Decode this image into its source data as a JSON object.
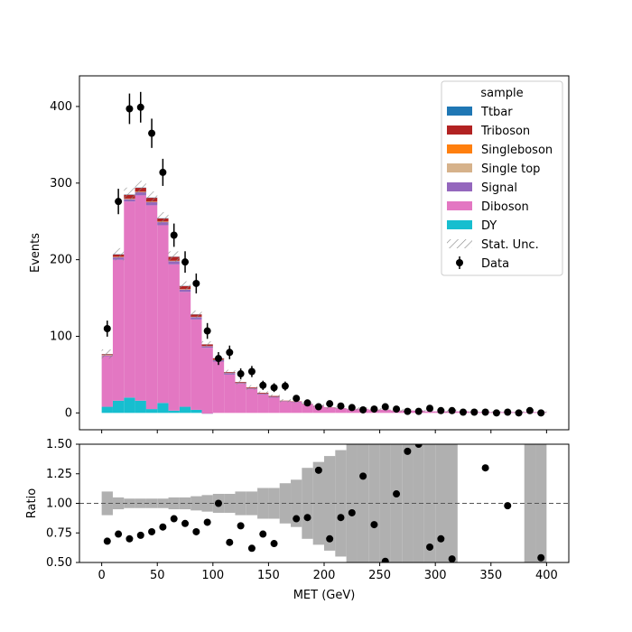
{
  "chart_data": [
    {
      "type": "bar",
      "panel": "main",
      "xlabel": "",
      "ylabel": "Events",
      "xlim": [
        -20,
        420
      ],
      "ylim": [
        -22,
        440
      ],
      "yticks": [
        0,
        100,
        200,
        300,
        400
      ],
      "bin_edges": [
        0,
        10,
        20,
        30,
        40,
        50,
        60,
        70,
        80,
        90,
        100,
        110,
        120,
        130,
        140,
        150,
        160,
        170,
        180,
        190,
        200,
        210,
        220,
        230,
        240,
        250,
        260,
        270,
        280,
        290,
        300,
        310,
        320,
        330,
        340,
        350,
        360,
        370,
        380,
        390,
        400
      ],
      "stacked": true,
      "legend_title": "sample",
      "legend_position": "top-right",
      "legend_entries": [
        "Ttbar",
        "Triboson",
        "Singleboson",
        "Single top",
        "Signal",
        "Diboson",
        "DY",
        "Stat. Unc.",
        "Data"
      ],
      "series": [
        {
          "name": "DY",
          "color": "#17becf",
          "values": [
            8,
            16,
            20,
            16,
            5,
            13,
            3,
            8,
            4,
            -1,
            0,
            0,
            0,
            0,
            0,
            0,
            0,
            0,
            0,
            0,
            0,
            0,
            0,
            0,
            0,
            0,
            0,
            0,
            0,
            0,
            0,
            0,
            0,
            0,
            0,
            0,
            0,
            0,
            0,
            0
          ]
        },
        {
          "name": "Diboson",
          "color": "#e377c2",
          "values": [
            66,
            184,
            256,
            268,
            266,
            232,
            191,
            150,
            118,
            86,
            67,
            50,
            38,
            31,
            24,
            20,
            15,
            14,
            11,
            9,
            7,
            6,
            5,
            5,
            4,
            4,
            3,
            3,
            3,
            2,
            2,
            2,
            2,
            1,
            1,
            1,
            1,
            1,
            1,
            1
          ]
        },
        {
          "name": "Signal",
          "color": "#9467bd",
          "values": [
            1,
            3,
            3,
            4,
            4,
            4,
            4,
            3,
            3,
            2,
            2,
            2,
            1,
            1,
            1,
            1,
            0.5,
            0.5,
            0.5,
            0.3,
            0.2,
            0.2,
            0.2,
            0.2,
            0.1,
            0.1,
            0.1,
            0.1,
            0.1,
            0.1,
            0.1,
            0.1,
            0.1,
            0.1,
            0.1,
            0.1,
            0.1,
            0.1,
            0.1,
            0.1
          ]
        },
        {
          "name": "Single top",
          "color": "#d6b28b",
          "values": [
            0.3,
            0.5,
            0.5,
            0.5,
            0.5,
            0.5,
            0.4,
            0.3,
            0.3,
            0.2,
            0.2,
            0.1,
            0.1,
            0.1,
            0.1,
            0.1,
            0,
            0,
            0,
            0,
            0,
            0,
            0,
            0,
            0,
            0,
            0,
            0,
            0,
            0,
            0,
            0,
            0,
            0,
            0,
            0,
            0,
            0,
            0,
            0
          ]
        },
        {
          "name": "Singleboson",
          "color": "#ff7f0e",
          "values": [
            0.3,
            0.3,
            0.3,
            0.3,
            0.3,
            0.3,
            0.3,
            0.3,
            0.2,
            0.2,
            0.1,
            0.1,
            0.1,
            0.1,
            0.1,
            0,
            0,
            0,
            0,
            0,
            0,
            0,
            0,
            0,
            0,
            0,
            0,
            0,
            0,
            0,
            0,
            0,
            0,
            0,
            0,
            0,
            0,
            0,
            0,
            0
          ]
        },
        {
          "name": "Triboson",
          "color": "#b22222",
          "values": [
            1,
            3,
            5,
            5,
            5,
            4,
            5,
            4,
            3,
            2,
            2,
            1,
            1,
            1,
            1,
            1,
            0.5,
            0.5,
            0.3,
            0.2,
            0.2,
            0.1,
            0.1,
            0.1,
            0.1,
            0.1,
            0.1,
            0.1,
            0,
            0,
            0,
            0,
            0,
            0,
            0,
            0,
            0,
            0,
            0,
            0
          ]
        },
        {
          "name": "Ttbar",
          "color": "#1f77b4",
          "values": [
            0.2,
            0.3,
            0.3,
            0.3,
            0.3,
            0.3,
            0.2,
            0.2,
            0.2,
            0.1,
            0.1,
            0.1,
            0.1,
            0,
            0,
            0,
            0,
            0,
            0,
            0,
            0,
            0,
            0,
            0,
            0,
            0,
            0,
            0,
            0,
            0,
            0,
            0,
            0,
            0,
            0,
            0,
            0,
            0,
            0,
            0
          ]
        }
      ],
      "stat_unc": [
        6,
        8,
        9,
        9,
        8,
        8,
        7,
        6,
        5,
        4,
        4,
        3,
        3,
        3,
        2,
        2,
        2,
        2,
        2,
        2,
        2,
        2,
        2,
        2,
        2,
        2,
        2,
        2,
        2,
        2,
        2,
        2,
        2,
        1,
        1,
        1,
        1,
        1,
        1,
        1
      ],
      "data": {
        "name": "Data",
        "x": [
          5,
          15,
          25,
          35,
          45,
          55,
          65,
          75,
          85,
          95,
          105,
          115,
          125,
          135,
          145,
          155,
          165,
          175,
          185,
          195,
          205,
          215,
          225,
          235,
          245,
          255,
          265,
          275,
          285,
          295,
          305,
          315,
          325,
          335,
          345,
          355,
          365,
          375,
          385,
          395
        ],
        "y": [
          110,
          276,
          397,
          399,
          365,
          314,
          232,
          197,
          169,
          107,
          71,
          79,
          51,
          54,
          36,
          33,
          35,
          19,
          13,
          8,
          12,
          9,
          7,
          4,
          5,
          8,
          5,
          2,
          2,
          6,
          3,
          3,
          1,
          1,
          1,
          0,
          1,
          0,
          3,
          0
        ],
        "err": [
          10.5,
          16.6,
          19.9,
          20,
          19.1,
          17.7,
          15.2,
          14,
          13,
          10.3,
          8.4,
          8.9,
          7.1,
          7.3,
          6,
          5.7,
          5.9,
          4.4,
          3.6,
          2.8,
          3.5,
          3,
          2.6,
          2,
          2.2,
          2.8,
          2.2,
          1.4,
          1.4,
          2.4,
          1.7,
          1.7,
          1,
          1,
          1,
          0,
          1,
          0,
          1.7,
          0
        ]
      }
    },
    {
      "type": "scatter",
      "panel": "ratio",
      "xlabel": "MET (GeV)",
      "ylabel": "Ratio",
      "xlim": [
        -20,
        420
      ],
      "ylim": [
        0.5,
        1.5
      ],
      "xticks": [
        0,
        50,
        100,
        150,
        200,
        250,
        300,
        350,
        400
      ],
      "yticks": [
        "0.50",
        "0.75",
        "1.00",
        "1.25",
        "1.50"
      ],
      "reference_line": 1.0,
      "uncertainty_band": {
        "color": "#b0b0b0",
        "half_width": [
          0.1,
          0.05,
          0.04,
          0.04,
          0.04,
          0.04,
          0.05,
          0.05,
          0.06,
          0.07,
          0.08,
          0.08,
          0.1,
          0.1,
          0.13,
          0.13,
          0.17,
          0.2,
          0.3,
          0.35,
          0.4,
          0.45,
          0.5,
          0.5,
          0.5,
          0.5,
          0.5,
          0.5,
          0.5,
          0.5,
          0.5,
          0.5,
          0,
          0,
          0,
          0,
          0,
          0,
          0.5,
          0.5
        ]
      },
      "points": {
        "x": [
          5,
          15,
          25,
          35,
          45,
          55,
          65,
          75,
          85,
          95,
          105,
          115,
          125,
          135,
          145,
          155,
          175,
          185,
          195,
          205,
          215,
          225,
          235,
          245,
          255,
          265,
          275,
          285,
          295,
          305,
          315,
          345,
          365,
          395
        ],
        "y": [
          0.68,
          0.74,
          0.7,
          0.73,
          0.76,
          0.8,
          0.87,
          0.83,
          0.76,
          0.84,
          1.0,
          0.67,
          0.81,
          0.62,
          0.74,
          0.66,
          0.87,
          0.88,
          1.28,
          0.7,
          0.88,
          0.92,
          1.23,
          0.82,
          0.51,
          1.08,
          1.44,
          1.5,
          0.63,
          0.7,
          0.53,
          1.3,
          0.98,
          0.54
        ]
      }
    }
  ]
}
